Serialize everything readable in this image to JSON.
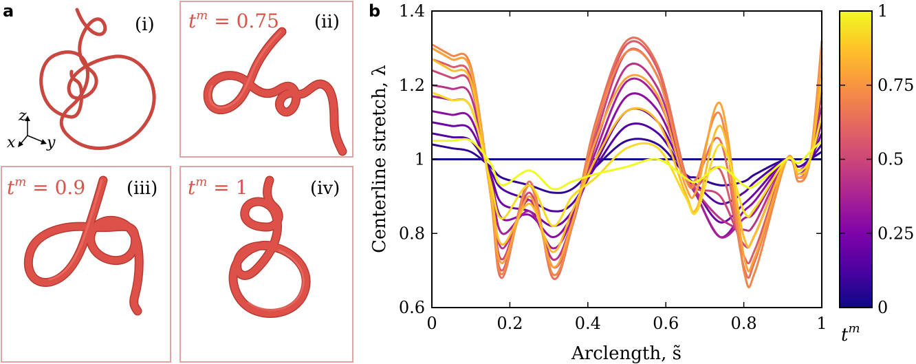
{
  "panel_a": {
    "letter": "a",
    "insets": [
      {
        "roman": "(i)",
        "label": ""
      },
      {
        "roman": "(ii)",
        "tm_symbol": "t",
        "tm_sup": "m",
        "tm_eq": " = 0.75"
      },
      {
        "roman": "(iii)",
        "tm_symbol": "t",
        "tm_sup": "m",
        "tm_eq": " = 0.9"
      },
      {
        "roman": "(iv)",
        "tm_symbol": "t",
        "tm_sup": "m",
        "tm_eq": " = 1"
      }
    ],
    "axes_triad": {
      "z": "z",
      "x": "x",
      "y": "y"
    },
    "curve_color": "#d9534a",
    "frame_color": "#e3a3a0"
  },
  "panel_b": {
    "letter": "b",
    "colorbar": {
      "label_symbol": "t",
      "label_sup": "m",
      "ticks": [
        "0",
        "0.25",
        "0.5",
        "0.75",
        "1"
      ],
      "tick_values": [
        0,
        0.25,
        0.5,
        0.75,
        1
      ],
      "colormap": "plasma"
    }
  },
  "chart_data": {
    "type": "line",
    "title": "",
    "xlabel": "Arclength, s̃",
    "ylabel": "Centerline stretch, λ",
    "xlim": [
      0,
      1
    ],
    "ylim": [
      0.6,
      1.4
    ],
    "xticks": [
      "0",
      "0.2",
      "0.4",
      "0.6",
      "0.8",
      "1"
    ],
    "xtick_values": [
      0,
      0.2,
      0.4,
      0.6,
      0.8,
      1
    ],
    "yticks": [
      "0.6",
      "0.8",
      "1",
      "1.2",
      "1.4"
    ],
    "ytick_values": [
      0.6,
      0.8,
      1,
      1.2,
      1.4
    ],
    "grid": false,
    "x": [
      0.0,
      0.05,
      0.1,
      0.15,
      0.18,
      0.25,
      0.31,
      0.36,
      0.42,
      0.5,
      0.58,
      0.65,
      0.68,
      0.74,
      0.8,
      0.83,
      0.91,
      0.94,
      0.97,
      1.0
    ],
    "series": [
      {
        "name": "t^m = 0.00",
        "tm": 0.0,
        "values": [
          1.0,
          1.0,
          1.0,
          1.0,
          1.0,
          1.0,
          1.0,
          1.0,
          1.0,
          1.0,
          1.0,
          1.0,
          1.0,
          1.0,
          1.0,
          1.0,
          1.0,
          1.0,
          1.0,
          1.0
        ]
      },
      {
        "name": "t^m = 0.07",
        "tm": 0.07,
        "values": [
          1.04,
          1.03,
          1.02,
          0.98,
          0.95,
          0.93,
          0.91,
          0.92,
          0.98,
          1.05,
          1.04,
          0.96,
          0.95,
          0.93,
          0.94,
          0.96,
          1.0,
          0.98,
          1.0,
          1.02
        ]
      },
      {
        "name": "t^m = 0.14",
        "tm": 0.14,
        "values": [
          1.07,
          1.06,
          1.05,
          0.97,
          0.92,
          0.89,
          0.86,
          0.88,
          0.98,
          1.09,
          1.07,
          0.96,
          0.93,
          0.88,
          0.91,
          0.94,
          1.0,
          0.98,
          1.0,
          1.04
        ]
      },
      {
        "name": "t^m = 0.21",
        "tm": 0.21,
        "values": [
          1.1,
          1.09,
          1.08,
          0.96,
          0.88,
          0.86,
          0.82,
          0.86,
          0.99,
          1.13,
          1.1,
          0.96,
          0.91,
          0.83,
          0.88,
          0.91,
          1.0,
          0.97,
          1.0,
          1.07
        ]
      },
      {
        "name": "t^m = 0.29",
        "tm": 0.29,
        "values": [
          1.13,
          1.12,
          1.11,
          0.95,
          0.84,
          0.85,
          0.79,
          0.85,
          1.0,
          1.17,
          1.13,
          0.96,
          0.9,
          0.79,
          0.86,
          0.89,
          1.0,
          0.97,
          1.0,
          1.1
        ]
      },
      {
        "name": "t^m = 0.36",
        "tm": 0.36,
        "values": [
          1.17,
          1.16,
          1.14,
          0.94,
          0.8,
          0.86,
          0.76,
          0.84,
          1.02,
          1.21,
          1.16,
          0.96,
          0.9,
          0.79,
          0.84,
          0.86,
          1.0,
          0.96,
          1.0,
          1.14
        ]
      },
      {
        "name": "t^m = 0.43",
        "tm": 0.43,
        "values": [
          1.2,
          1.19,
          1.17,
          0.93,
          0.76,
          0.89,
          0.73,
          0.83,
          1.04,
          1.25,
          1.19,
          0.96,
          0.91,
          0.84,
          0.81,
          0.83,
          1.0,
          0.96,
          1.0,
          1.18
        ]
      },
      {
        "name": "t^m = 0.50",
        "tm": 0.5,
        "values": [
          1.24,
          1.22,
          1.2,
          0.92,
          0.73,
          0.91,
          0.71,
          0.82,
          1.06,
          1.29,
          1.22,
          0.96,
          0.92,
          0.9,
          0.77,
          0.8,
          1.0,
          0.95,
          1.0,
          1.22
        ]
      },
      {
        "name": "t^m = 0.57",
        "tm": 0.57,
        "values": [
          1.27,
          1.25,
          1.22,
          0.91,
          0.7,
          0.93,
          0.69,
          0.82,
          1.08,
          1.31,
          1.24,
          0.96,
          0.93,
          0.97,
          0.74,
          0.76,
          1.0,
          0.95,
          1.0,
          1.26
        ]
      },
      {
        "name": "t^m = 0.64",
        "tm": 0.64,
        "values": [
          1.3,
          1.27,
          1.24,
          0.91,
          0.68,
          0.94,
          0.68,
          0.82,
          1.1,
          1.32,
          1.25,
          0.96,
          0.95,
          1.05,
          0.71,
          0.73,
          1.0,
          0.95,
          1.0,
          1.3
        ]
      },
      {
        "name": "t^m = 0.71",
        "tm": 0.71,
        "values": [
          1.31,
          1.28,
          1.25,
          0.91,
          0.69,
          0.93,
          0.69,
          0.82,
          1.09,
          1.29,
          1.22,
          0.95,
          0.95,
          1.12,
          0.7,
          0.7,
          1.0,
          0.94,
          1.0,
          1.32
        ]
      },
      {
        "name": "t^m = 0.79",
        "tm": 0.79,
        "values": [
          1.3,
          1.27,
          1.24,
          0.91,
          0.72,
          0.9,
          0.71,
          0.83,
          1.05,
          1.22,
          1.17,
          0.93,
          0.92,
          1.15,
          0.74,
          0.74,
          1.0,
          0.95,
          1.0,
          1.28
        ]
      },
      {
        "name": "t^m = 0.86",
        "tm": 0.86,
        "values": [
          1.27,
          1.24,
          1.21,
          0.92,
          0.77,
          0.88,
          0.75,
          0.86,
          1.0,
          1.13,
          1.1,
          0.91,
          0.87,
          1.09,
          0.79,
          0.8,
          1.0,
          0.96,
          1.0,
          1.22
        ]
      },
      {
        "name": "t^m = 0.93",
        "tm": 0.93,
        "values": [
          1.18,
          1.16,
          1.14,
          0.94,
          0.84,
          0.93,
          0.82,
          0.9,
          0.95,
          1.03,
          1.03,
          0.9,
          0.86,
          1.04,
          0.86,
          0.87,
          1.0,
          0.97,
          1.0,
          1.12
        ]
      },
      {
        "name": "t^m = 1.00",
        "tm": 1.0,
        "values": [
          1.05,
          1.05,
          1.05,
          0.99,
          0.93,
          0.97,
          0.92,
          0.94,
          0.96,
          0.98,
          1.0,
          0.95,
          0.94,
          0.98,
          0.93,
          0.93,
          1.0,
          0.99,
          1.02,
          1.05
        ]
      }
    ]
  }
}
